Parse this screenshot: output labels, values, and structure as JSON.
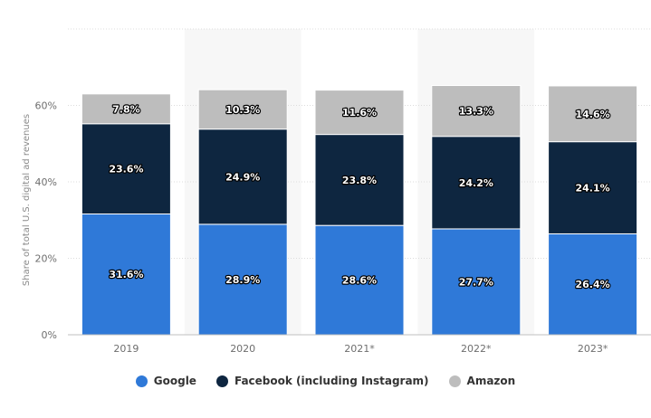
{
  "chart_data": {
    "type": "bar",
    "stacked": true,
    "categories": [
      "2019",
      "2020",
      "2021*",
      "2022*",
      "2023*"
    ],
    "series": [
      {
        "name": "Google",
        "color": "#2f79d8",
        "values": [
          31.6,
          28.9,
          28.6,
          27.7,
          26.4
        ],
        "labels": [
          "31.6%",
          "28.9%",
          "28.6%",
          "27.7%",
          "26.4%"
        ]
      },
      {
        "name": "Facebook (including Instagram)",
        "color": "#0e2640",
        "values": [
          23.6,
          24.9,
          23.8,
          24.2,
          24.1
        ],
        "labels": [
          "23.6%",
          "24.9%",
          "23.8%",
          "24.2%",
          "24.1%"
        ]
      },
      {
        "name": "Amazon",
        "color": "#bdbdbd",
        "values": [
          7.8,
          10.3,
          11.6,
          13.3,
          14.6
        ],
        "labels": [
          "7.8%",
          "10.3%",
          "11.6%",
          "13.3%",
          "14.6%"
        ]
      }
    ],
    "ylabel": "Share of total U.S. digital ad revenues",
    "ylim": [
      0,
      80
    ],
    "yticks": [
      0,
      20,
      40,
      60
    ],
    "ytick_labels": [
      "0%",
      "20%",
      "40%",
      "60%"
    ],
    "grid": true,
    "legend_position": "bottom-center"
  }
}
